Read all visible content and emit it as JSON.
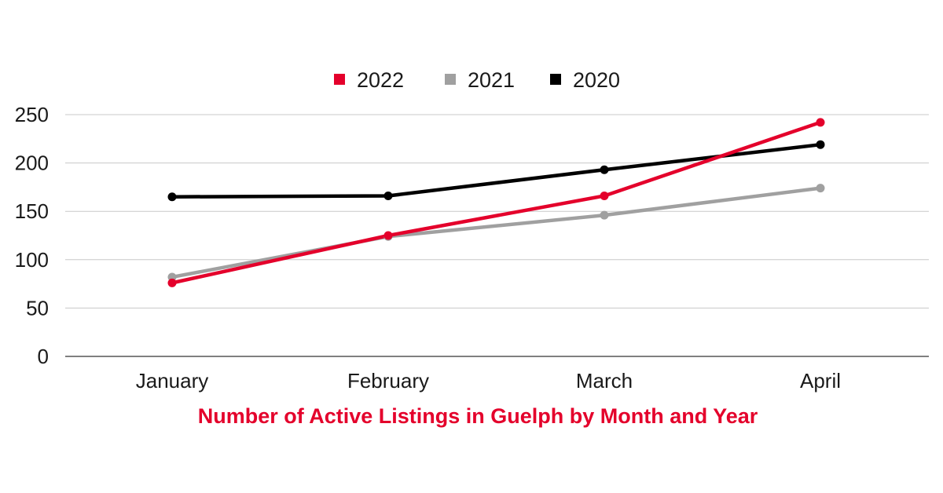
{
  "chart_data": {
    "type": "line",
    "title": "Number of Active Listings in Guelph by Month and Year",
    "xlabel": "",
    "ylabel": "",
    "categories": [
      "January",
      "February",
      "March",
      "April"
    ],
    "ylim": [
      0,
      250
    ],
    "yticks": [
      0,
      50,
      100,
      150,
      200,
      250
    ],
    "grid": true,
    "legend_position": "top-center",
    "series": [
      {
        "name": "2022",
        "color": "#e4002b",
        "values": [
          76,
          125,
          166,
          242
        ]
      },
      {
        "name": "2021",
        "color": "#a0a0a0",
        "values": [
          82,
          124,
          146,
          174
        ]
      },
      {
        "name": "2020",
        "color": "#000000",
        "values": [
          165,
          166,
          193,
          219
        ]
      }
    ]
  }
}
